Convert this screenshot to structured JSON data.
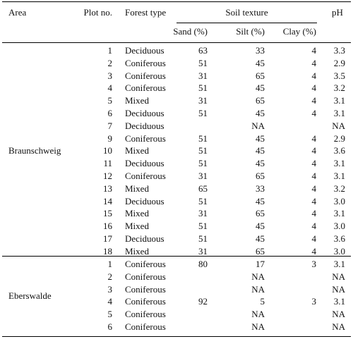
{
  "headers": {
    "area": "Area",
    "plot_no": "Plot no.",
    "forest_type": "Forest type",
    "soil_texture": "Soil texture",
    "ph": "pH",
    "sand": "Sand (%)",
    "silt": "Silt (%)",
    "clay": "Clay (%)"
  },
  "groups": [
    {
      "area": "Braunschweig",
      "rows": [
        {
          "plot": "1",
          "forest": "Deciduous",
          "sand": "63",
          "silt": "33",
          "clay": "4",
          "ph": "3.3"
        },
        {
          "plot": "2",
          "forest": "Coniferous",
          "sand": "51",
          "silt": "45",
          "clay": "4",
          "ph": "2.9"
        },
        {
          "plot": "3",
          "forest": "Coniferous",
          "sand": "31",
          "silt": "65",
          "clay": "4",
          "ph": "3.5"
        },
        {
          "plot": "4",
          "forest": "Coniferous",
          "sand": "51",
          "silt": "45",
          "clay": "4",
          "ph": "3.2"
        },
        {
          "plot": "5",
          "forest": "Mixed",
          "sand": "31",
          "silt": "65",
          "clay": "4",
          "ph": "3.1"
        },
        {
          "plot": "6",
          "forest": "Deciduous",
          "sand": "51",
          "silt": "45",
          "clay": "4",
          "ph": "3.1"
        },
        {
          "plot": "7",
          "forest": "Deciduous",
          "sand": "",
          "silt": "NA",
          "clay": "",
          "ph": "NA"
        },
        {
          "plot": "9",
          "forest": "Coniferous",
          "sand": "51",
          "silt": "45",
          "clay": "4",
          "ph": "2.9"
        },
        {
          "plot": "10",
          "forest": "Mixed",
          "sand": "51",
          "silt": "45",
          "clay": "4",
          "ph": "3.6"
        },
        {
          "plot": "11",
          "forest": "Deciduous",
          "sand": "51",
          "silt": "45",
          "clay": "4",
          "ph": "3.1"
        },
        {
          "plot": "12",
          "forest": "Coniferous",
          "sand": "31",
          "silt": "65",
          "clay": "4",
          "ph": "3.1"
        },
        {
          "plot": "13",
          "forest": "Mixed",
          "sand": "65",
          "silt": "33",
          "clay": "4",
          "ph": "3.2"
        },
        {
          "plot": "14",
          "forest": "Deciduous",
          "sand": "51",
          "silt": "45",
          "clay": "4",
          "ph": "3.0"
        },
        {
          "plot": "15",
          "forest": "Mixed",
          "sand": "31",
          "silt": "65",
          "clay": "4",
          "ph": "3.1"
        },
        {
          "plot": "16",
          "forest": "Mixed",
          "sand": "51",
          "silt": "45",
          "clay": "4",
          "ph": "3.0"
        },
        {
          "plot": "17",
          "forest": "Deciduous",
          "sand": "51",
          "silt": "45",
          "clay": "4",
          "ph": "3.6"
        },
        {
          "plot": "18",
          "forest": "Mixed",
          "sand": "31",
          "silt": "65",
          "clay": "4",
          "ph": "3.0"
        }
      ]
    },
    {
      "area": "Eberswalde",
      "rows": [
        {
          "plot": "1",
          "forest": "Coniferous",
          "sand": "80",
          "silt": "17",
          "clay": "3",
          "ph": "3.1"
        },
        {
          "plot": "2",
          "forest": "Coniferous",
          "sand": "",
          "silt": "NA",
          "clay": "",
          "ph": "NA"
        },
        {
          "plot": "3",
          "forest": "Coniferous",
          "sand": "",
          "silt": "NA",
          "clay": "",
          "ph": "NA"
        },
        {
          "plot": "4",
          "forest": "Coniferous",
          "sand": "92",
          "silt": "5",
          "clay": "3",
          "ph": "3.1"
        },
        {
          "plot": "5",
          "forest": "Coniferous",
          "sand": "",
          "silt": "NA",
          "clay": "",
          "ph": "NA"
        },
        {
          "plot": "6",
          "forest": "Coniferous",
          "sand": "",
          "silt": "NA",
          "clay": "",
          "ph": "NA"
        }
      ]
    }
  ]
}
